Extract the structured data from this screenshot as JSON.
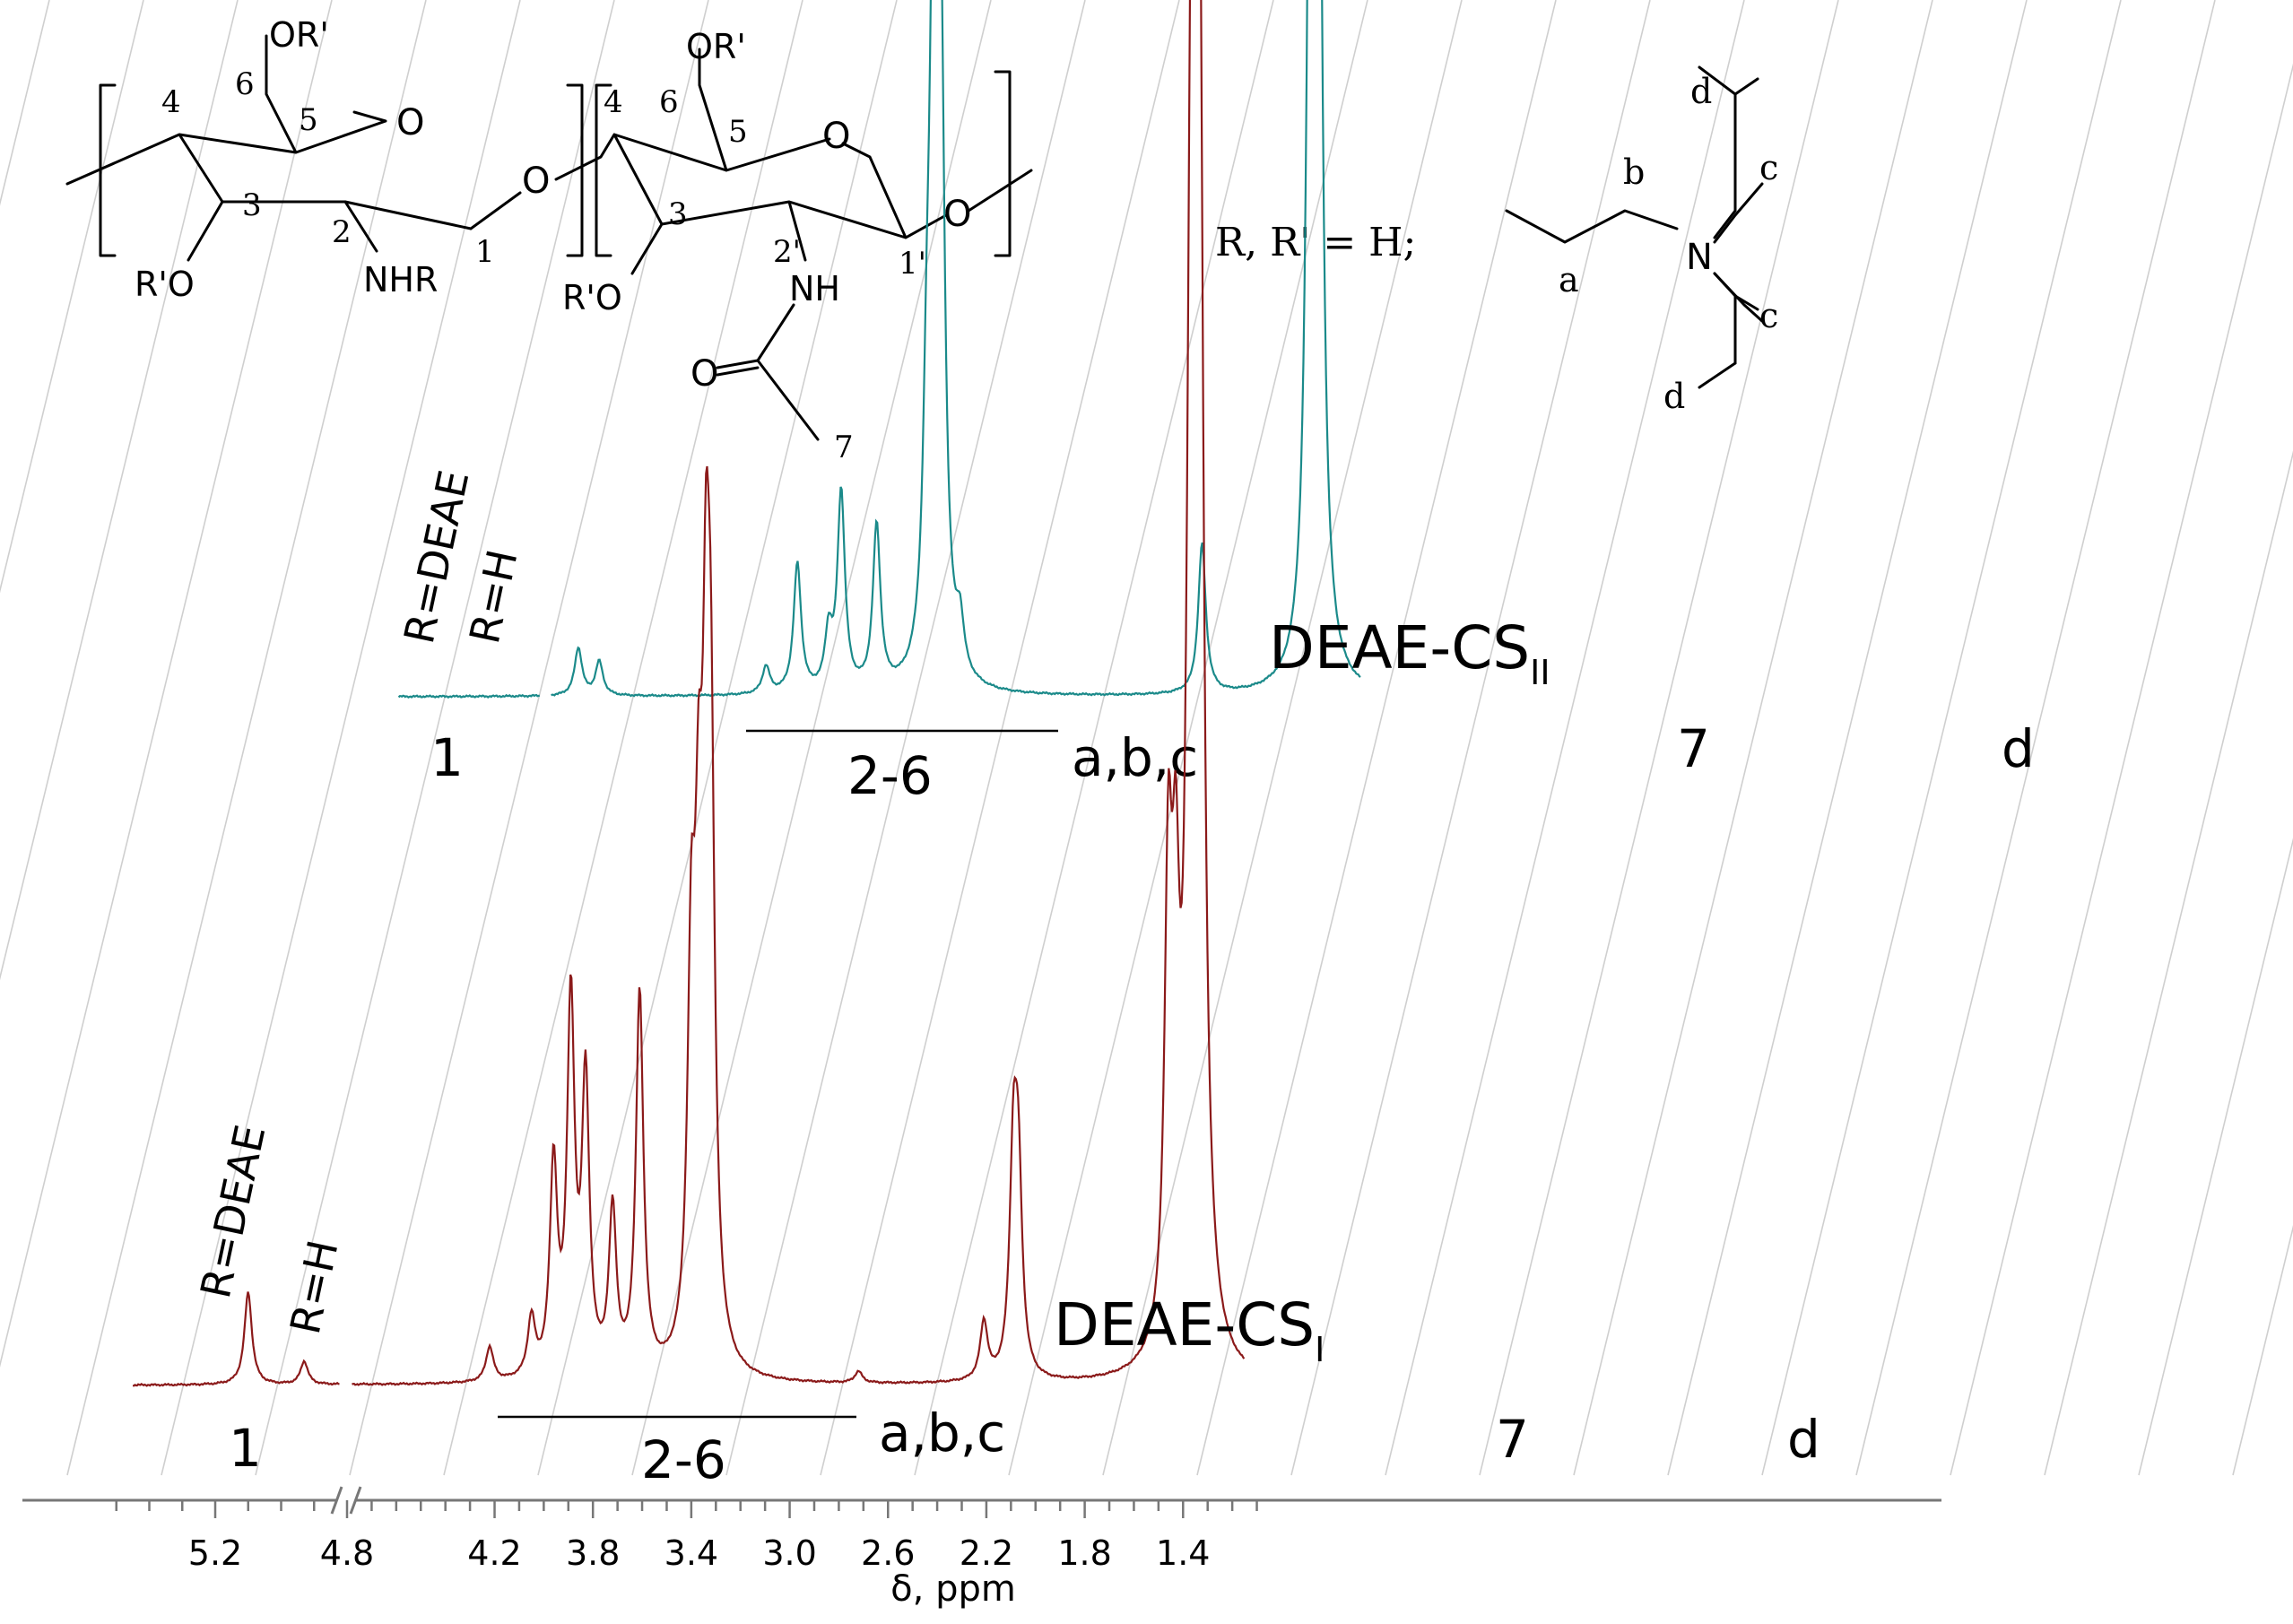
{
  "chart_data": {
    "type": "line",
    "xlabel": "δ, ppm",
    "x_ticks": [
      "5.2",
      "4.8",
      "4.2",
      "3.8",
      "3.4",
      "3.0",
      "2.6",
      "2.2",
      "1.8",
      "1.4"
    ],
    "x_reversed": true,
    "x_axis_break_at": 4.8,
    "grid": "diagonal guide lines",
    "series": [
      {
        "name": "DEAE-CS",
        "subscript": "II",
        "color": "#1b8a8a",
        "peaks": [
          {
            "ppm": 4.65,
            "height": 0.07
          },
          {
            "ppm": 4.55,
            "height": 0.05
          },
          {
            "ppm": 3.75,
            "height": 0.04
          },
          {
            "ppm": 3.6,
            "height": 0.19
          },
          {
            "ppm": 3.45,
            "height": 0.08
          },
          {
            "ppm": 3.39,
            "height": 0.29
          },
          {
            "ppm": 3.22,
            "height": 0.24
          },
          {
            "ppm": 2.98,
            "height": 0.27
          },
          {
            "ppm": 2.95,
            "height": 0.7
          },
          {
            "ppm": 2.93,
            "height": 0.65
          },
          {
            "ppm": 2.91,
            "height": 0.6
          },
          {
            "ppm": 2.82,
            "height": 0.07
          },
          {
            "ppm": 1.66,
            "height": 0.22
          },
          {
            "ppm": 1.14,
            "height": 0.98
          },
          {
            "ppm": 1.12,
            "height": 1.0
          },
          {
            "ppm": 1.1,
            "height": 0.94
          }
        ]
      },
      {
        "name": "DEAE-CS",
        "subscript": "I",
        "color": "#8b1a1a",
        "peaks": [
          {
            "ppm": 5.1,
            "height": 0.08
          },
          {
            "ppm": 4.93,
            "height": 0.02
          },
          {
            "ppm": 4.22,
            "height": 0.03
          },
          {
            "ppm": 4.05,
            "height": 0.05
          },
          {
            "ppm": 3.96,
            "height": 0.18
          },
          {
            "ppm": 3.89,
            "height": 0.32
          },
          {
            "ppm": 3.83,
            "height": 0.25
          },
          {
            "ppm": 3.72,
            "height": 0.14
          },
          {
            "ppm": 3.61,
            "height": 0.33
          },
          {
            "ppm": 3.4,
            "height": 0.31
          },
          {
            "ppm": 3.37,
            "height": 0.33
          },
          {
            "ppm": 3.34,
            "height": 0.48
          },
          {
            "ppm": 3.32,
            "height": 0.42
          },
          {
            "ppm": 2.72,
            "height": 0.01
          },
          {
            "ppm": 2.21,
            "height": 0.05
          },
          {
            "ppm": 2.09,
            "height": 0.18
          },
          {
            "ppm": 2.07,
            "height": 0.16
          },
          {
            "ppm": 1.46,
            "height": 0.38
          },
          {
            "ppm": 1.43,
            "height": 0.3
          },
          {
            "ppm": 1.37,
            "height": 0.65
          },
          {
            "ppm": 1.35,
            "height": 1.0
          },
          {
            "ppm": 1.33,
            "height": 0.72
          }
        ]
      }
    ],
    "annotations": {
      "top": {
        "peak_1_labels": [
          "R=DEAE",
          "R=H"
        ],
        "label_1": "1",
        "label_2_6": "2-6",
        "label_abc": "a,b,c",
        "label_7": "7",
        "label_d": "d"
      },
      "bottom": {
        "peak_1_labels": [
          "R=DEAE",
          "R=H"
        ],
        "label_1": "1",
        "label_2_6": "2-6",
        "label_abc": "a,b,c",
        "label_7": "7",
        "label_d": "d"
      }
    },
    "structure": {
      "substituent_text": "R, R' = H;",
      "atom_labels": {
        "or_prime": "OR'",
        "o": "O",
        "r_prime_o": "R'O",
        "nhr": "NHR",
        "nh": "NH",
        "n": "N",
        "carbonyl_o": "O"
      },
      "ring1_numbers": [
        "4",
        "6",
        "5",
        "3",
        "2",
        "1"
      ],
      "ring2_numbers": [
        "4",
        "6",
        "5",
        "3",
        "2'",
        "1'",
        "7"
      ],
      "chain_letters": [
        "a",
        "b",
        "c",
        "c",
        "d",
        "d"
      ]
    }
  }
}
